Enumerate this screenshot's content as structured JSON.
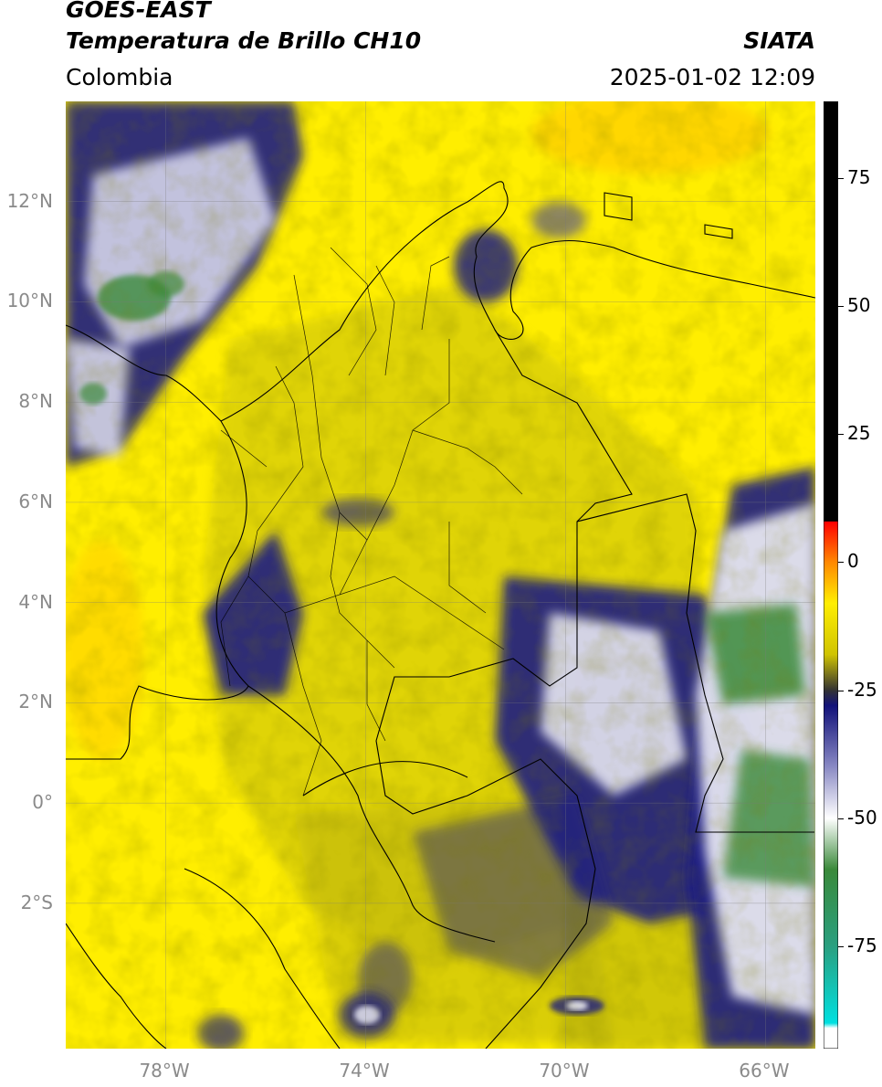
{
  "header": {
    "satellite": "GOES-EAST",
    "product": "Temperatura de Brillo CH10",
    "region": "Colombia",
    "agency": "SIATA",
    "datetime": "2025-01-02 12:09"
  },
  "map": {
    "lon_range": [
      -80.0,
      -65.0
    ],
    "lat_range": [
      -4.9,
      14.0
    ],
    "lat_ticks": [
      {
        "value": 12,
        "label": "12°N"
      },
      {
        "value": 10,
        "label": "10°N"
      },
      {
        "value": 8,
        "label": "8°N"
      },
      {
        "value": 6,
        "label": "6°N"
      },
      {
        "value": 4,
        "label": "4°N"
      },
      {
        "value": 2,
        "label": "2°N"
      },
      {
        "value": 0,
        "label": "0°"
      },
      {
        "value": -2,
        "label": "2°S"
      }
    ],
    "lon_ticks": [
      {
        "value": -78,
        "label": "78°W"
      },
      {
        "value": -74,
        "label": "74°W"
      },
      {
        "value": -70,
        "label": "70°W"
      },
      {
        "value": -66,
        "label": "66°W"
      }
    ],
    "colors": {
      "background": "#ffee00",
      "mid": "#c8c010",
      "cold_blue": "#1c1c82",
      "cold_white": "#f2f2f8",
      "very_cold_green": "#3a8a3a"
    }
  },
  "colorbar": {
    "range": [
      -95,
      90
    ],
    "ticks": [
      {
        "value": 75,
        "label": "75"
      },
      {
        "value": 50,
        "label": "50"
      },
      {
        "value": 25,
        "label": "25"
      },
      {
        "value": 0,
        "label": "0"
      },
      {
        "value": -25,
        "label": "-25"
      },
      {
        "value": -50,
        "label": "-50"
      },
      {
        "value": -75,
        "label": "-75"
      }
    ],
    "stops": [
      {
        "value": 90,
        "color": "#000000"
      },
      {
        "value": 8,
        "color": "#000000"
      },
      {
        "value": 7.9,
        "color": "#ff0000"
      },
      {
        "value": 0,
        "color": "#ff8800"
      },
      {
        "value": -8,
        "color": "#ffee00"
      },
      {
        "value": -18,
        "color": "#d0c400"
      },
      {
        "value": -25,
        "color": "#333333"
      },
      {
        "value": -28,
        "color": "#12127a"
      },
      {
        "value": -40,
        "color": "#8a8ac4"
      },
      {
        "value": -50,
        "color": "#ffffff"
      },
      {
        "value": -60,
        "color": "#3a8a3a"
      },
      {
        "value": -75,
        "color": "#2aa080"
      },
      {
        "value": -90,
        "color": "#00e0e0"
      },
      {
        "value": -91,
        "color": "#ffffff"
      },
      {
        "value": -95,
        "color": "#ffffff"
      }
    ]
  }
}
